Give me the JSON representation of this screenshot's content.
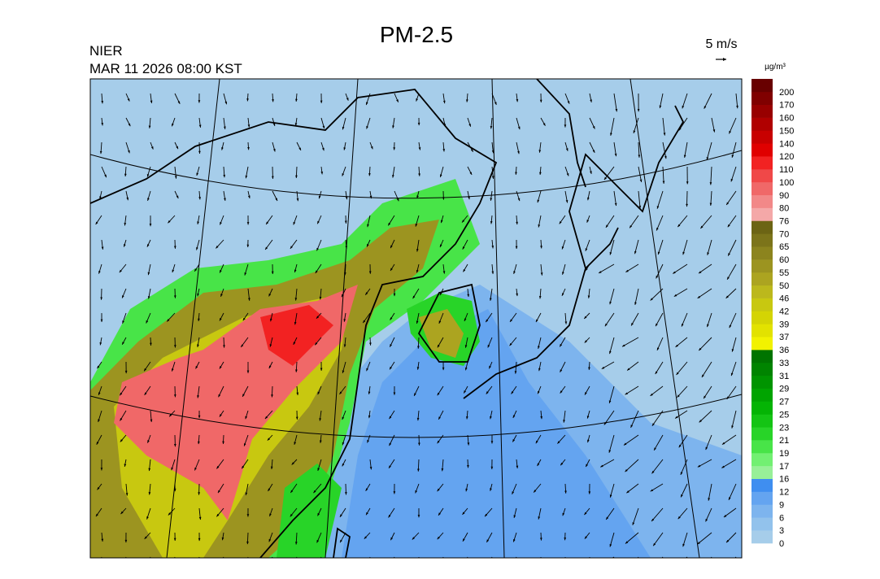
{
  "header": {
    "title": "PM-2.5",
    "agency": "NIER",
    "datetime": "MAR 11 2026 08:00 KST",
    "wind_scale": "5 m/s"
  },
  "colorbar": {
    "unit": "µg/m³",
    "labels": [
      0,
      3,
      6,
      9,
      12,
      16,
      17,
      19,
      21,
      23,
      25,
      27,
      29,
      31,
      33,
      36,
      37,
      39,
      42,
      46,
      50,
      55,
      60,
      65,
      70,
      76,
      80,
      90,
      100,
      110,
      120,
      140,
      150,
      160,
      170,
      200
    ],
    "colors": [
      "#a6cdea",
      "#92c2ec",
      "#7db4ee",
      "#64a4f0",
      "#3f8ef0",
      "#98f098",
      "#72f072",
      "#48e448",
      "#28d428",
      "#14c414",
      "#04b404",
      "#00a400",
      "#009400",
      "#008400",
      "#007400",
      "#f2f200",
      "#e2e200",
      "#d4d404",
      "#c8c810",
      "#bcb81c",
      "#aca420",
      "#9c9420",
      "#8c841e",
      "#7c741a",
      "#6c6414",
      "#f4a8a8",
      "#f28888",
      "#f06868",
      "#f04848",
      "#f22222",
      "#e00000",
      "#c80000",
      "#b00000",
      "#980000",
      "#800000",
      "#680000"
    ]
  }
}
